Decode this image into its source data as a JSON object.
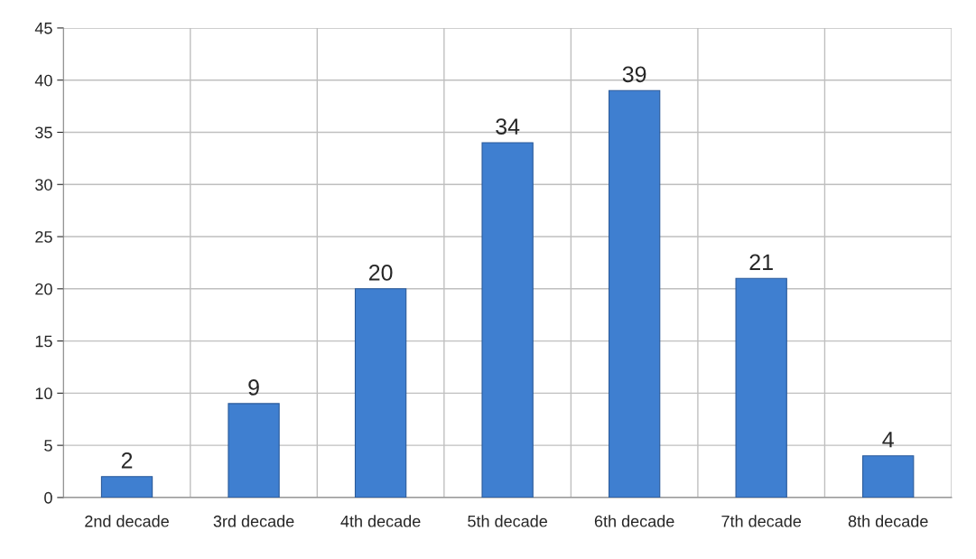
{
  "chart_data": {
    "type": "bar",
    "categories": [
      "2nd decade",
      "3rd decade",
      "4th decade",
      "5th decade",
      "6th decade",
      "7th decade",
      "8th decade"
    ],
    "values": [
      2,
      9,
      20,
      34,
      39,
      21,
      4
    ],
    "color": "#3f7fd0",
    "ylim": [
      0,
      45
    ],
    "yticks": [
      0,
      5,
      10,
      15,
      20,
      25,
      30,
      35,
      40,
      45
    ],
    "grid": true,
    "data_labels": true
  }
}
